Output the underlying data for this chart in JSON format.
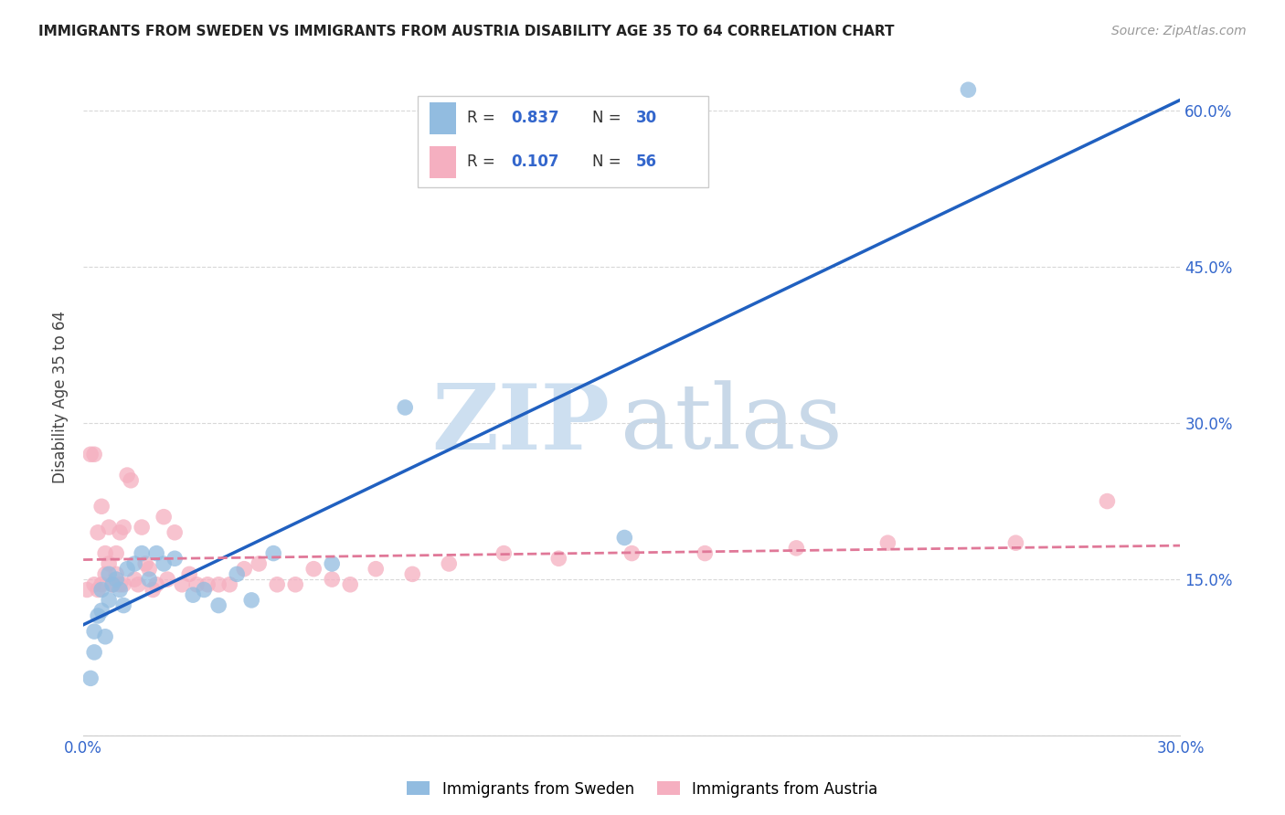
{
  "title": "IMMIGRANTS FROM SWEDEN VS IMMIGRANTS FROM AUSTRIA DISABILITY AGE 35 TO 64 CORRELATION CHART",
  "source": "Source: ZipAtlas.com",
  "ylabel": "Disability Age 35 to 64",
  "xlim": [
    0.0,
    0.3
  ],
  "ylim": [
    0.0,
    0.65
  ],
  "xticks": [
    0.0,
    0.05,
    0.1,
    0.15,
    0.2,
    0.25,
    0.3
  ],
  "xtick_labels": [
    "0.0%",
    "",
    "",
    "",
    "",
    "",
    "30.0%"
  ],
  "yticks": [
    0.0,
    0.15,
    0.3,
    0.45,
    0.6
  ],
  "ytick_labels_right": [
    "",
    "15.0%",
    "30.0%",
    "45.0%",
    "60.0%"
  ],
  "sweden_color": "#92bce0",
  "austria_color": "#f5afc0",
  "sweden_R": 0.837,
  "sweden_N": 30,
  "austria_R": 0.107,
  "austria_N": 56,
  "sweden_line_color": "#2060c0",
  "austria_line_color": "#e07898",
  "grid_color": "#d8d8d8",
  "legend_label_sweden": "Immigrants from Sweden",
  "legend_label_austria": "Immigrants from Austria",
  "sweden_x": [
    0.002,
    0.003,
    0.003,
    0.004,
    0.005,
    0.005,
    0.006,
    0.007,
    0.007,
    0.008,
    0.009,
    0.01,
    0.011,
    0.012,
    0.014,
    0.016,
    0.018,
    0.02,
    0.022,
    0.025,
    0.03,
    0.033,
    0.037,
    0.042,
    0.046,
    0.052,
    0.068,
    0.088,
    0.148,
    0.242
  ],
  "sweden_y": [
    0.055,
    0.1,
    0.08,
    0.115,
    0.14,
    0.12,
    0.095,
    0.13,
    0.155,
    0.145,
    0.15,
    0.14,
    0.125,
    0.16,
    0.165,
    0.175,
    0.15,
    0.175,
    0.165,
    0.17,
    0.135,
    0.14,
    0.125,
    0.155,
    0.13,
    0.175,
    0.165,
    0.315,
    0.19,
    0.62
  ],
  "austria_x": [
    0.001,
    0.002,
    0.003,
    0.003,
    0.004,
    0.004,
    0.005,
    0.005,
    0.006,
    0.006,
    0.007,
    0.007,
    0.008,
    0.008,
    0.009,
    0.009,
    0.01,
    0.01,
    0.011,
    0.011,
    0.012,
    0.013,
    0.014,
    0.015,
    0.016,
    0.017,
    0.018,
    0.019,
    0.02,
    0.022,
    0.023,
    0.025,
    0.027,
    0.029,
    0.031,
    0.034,
    0.037,
    0.04,
    0.044,
    0.048,
    0.053,
    0.058,
    0.063,
    0.068,
    0.073,
    0.08,
    0.09,
    0.1,
    0.115,
    0.13,
    0.15,
    0.17,
    0.195,
    0.22,
    0.255,
    0.28
  ],
  "austria_y": [
    0.14,
    0.27,
    0.27,
    0.145,
    0.14,
    0.195,
    0.22,
    0.145,
    0.155,
    0.175,
    0.2,
    0.165,
    0.145,
    0.145,
    0.155,
    0.175,
    0.195,
    0.145,
    0.2,
    0.145,
    0.25,
    0.245,
    0.15,
    0.145,
    0.2,
    0.165,
    0.16,
    0.14,
    0.145,
    0.21,
    0.15,
    0.195,
    0.145,
    0.155,
    0.145,
    0.145,
    0.145,
    0.145,
    0.16,
    0.165,
    0.145,
    0.145,
    0.16,
    0.15,
    0.145,
    0.16,
    0.155,
    0.165,
    0.175,
    0.17,
    0.175,
    0.175,
    0.18,
    0.185,
    0.185,
    0.225
  ]
}
